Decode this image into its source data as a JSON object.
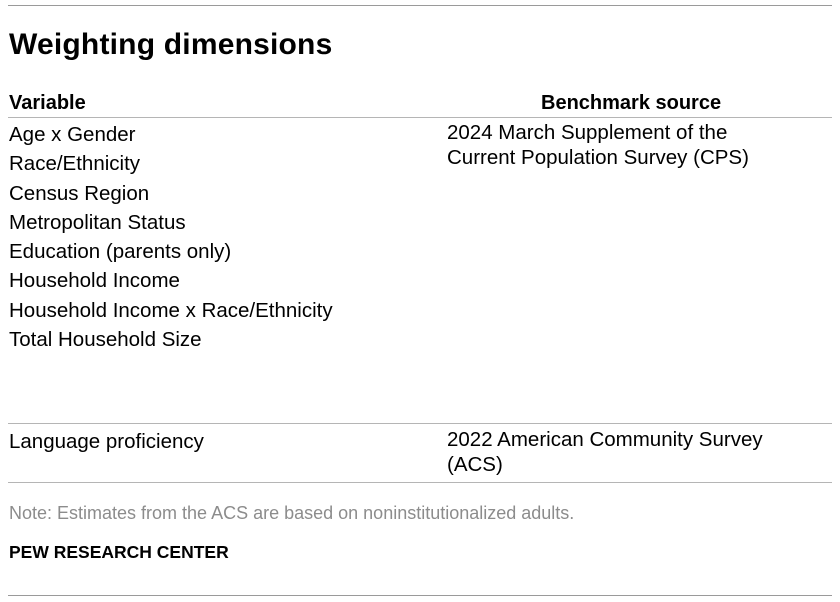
{
  "title": "Weighting dimensions",
  "table": {
    "headers": {
      "variable": "Variable",
      "source": "Benchmark source"
    },
    "rows": [
      {
        "variables": [
          "Age x Gender",
          "Race/Ethnicity",
          "Census Region",
          "Metropolitan Status",
          "Education (parents only)",
          "Household Income",
          "Household Income x Race/Ethnicity",
          "Total Household Size"
        ],
        "source_lines": [
          "2024 March Supplement of the",
          "Current Population Survey (CPS)"
        ]
      },
      {
        "variables": [
          "Language proficiency"
        ],
        "source_lines": [
          "2022 American Community Survey",
          "(ACS)"
        ]
      }
    ]
  },
  "note": "Note: Estimates from the ACS are based on noninstitutionalized adults.",
  "credit": "PEW RESEARCH CENTER"
}
